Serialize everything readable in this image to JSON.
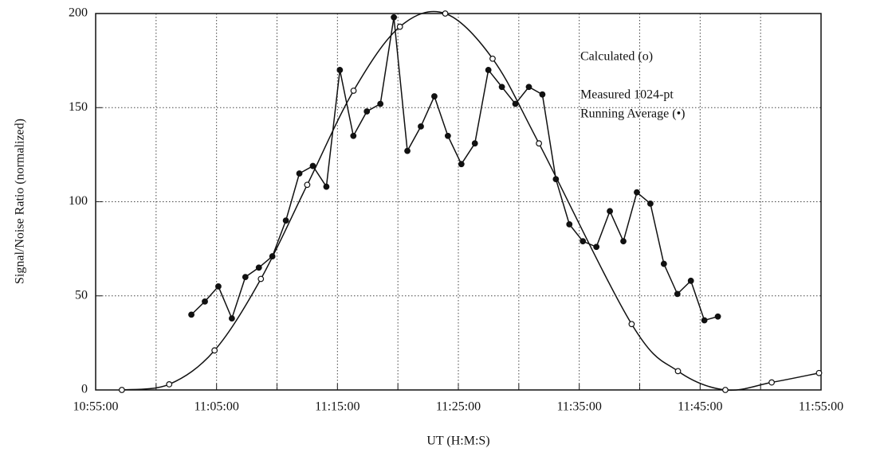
{
  "chart_data": {
    "type": "line",
    "xlabel": "UT (H:M:S)",
    "ylabel": "Signal/Noise Ratio (normalized)",
    "annotations": [
      "Calculated (o)",
      "Measured 1024-pt",
      "Running Average  (•)"
    ],
    "xlim": [
      "10:55:00",
      "11:55:00"
    ],
    "xticks": [
      {
        "value": "10:55:00",
        "label": "10:55:00"
      },
      {
        "value": "11:00:00",
        "label": null
      },
      {
        "value": "11:05:00",
        "label": "11:05:00"
      },
      {
        "value": "11:10:00",
        "label": null
      },
      {
        "value": "11:15:00",
        "label": "11:15:00"
      },
      {
        "value": "11:20:00",
        "label": null
      },
      {
        "value": "11:25:00",
        "label": "11:25:00"
      },
      {
        "value": "11:30:00",
        "label": null
      },
      {
        "value": "11:35:00",
        "label": "11:35:00"
      },
      {
        "value": "11:40:00",
        "label": null
      },
      {
        "value": "11:45:00",
        "label": "11:45:00"
      },
      {
        "value": "11:50:00",
        "label": null
      },
      {
        "value": "11:55:00",
        "label": "11:55:00"
      }
    ],
    "ylim": [
      0,
      200
    ],
    "yticks": [
      0,
      50,
      100,
      150,
      200
    ],
    "grid": true,
    "series": [
      {
        "name": "Calculated",
        "color": "#111111",
        "marker": "open",
        "x": [
          "10:57:10",
          "11:01:05",
          "11:04:50",
          "11:08:40",
          "11:12:30",
          "11:16:20",
          "11:20:10",
          "11:23:55",
          "11:27:50",
          "11:31:40",
          "11:39:20",
          "11:43:10",
          "11:47:05",
          "11:50:55",
          "11:54:50"
        ],
        "values": [
          0,
          3,
          21,
          59,
          109,
          159,
          193,
          200,
          176,
          131,
          35,
          10,
          0,
          4,
          9
        ]
      },
      {
        "name": "Measured",
        "color": "#111111",
        "marker": "filled",
        "x": [
          "11:02:55",
          "11:04:02",
          "11:05:09",
          "11:06:16",
          "11:07:23",
          "11:08:30",
          "11:09:37",
          "11:10:44",
          "11:11:51",
          "11:12:58",
          "11:14:05",
          "11:15:12",
          "11:16:19",
          "11:17:26",
          "11:18:33",
          "11:19:40",
          "11:20:47",
          "11:21:54",
          "11:23:01",
          "11:24:08",
          "11:25:15",
          "11:26:22",
          "11:27:29",
          "11:28:36",
          "11:29:43",
          "11:30:50",
          "11:31:57",
          "11:33:04",
          "11:34:11",
          "11:35:18",
          "11:36:25",
          "11:37:32",
          "11:38:39",
          "11:39:46",
          "11:40:53",
          "11:42:00",
          "11:43:07",
          "11:44:14",
          "11:45:21",
          "11:46:28"
        ],
        "values": [
          40,
          47,
          55,
          38,
          60,
          65,
          71,
          90,
          115,
          119,
          108,
          170,
          135,
          148,
          152,
          198,
          127,
          140,
          156,
          135,
          120,
          131,
          170,
          161,
          152,
          161,
          157,
          112,
          88,
          79,
          76,
          95,
          79,
          105,
          99,
          67,
          51,
          58,
          37,
          39
        ]
      }
    ]
  }
}
